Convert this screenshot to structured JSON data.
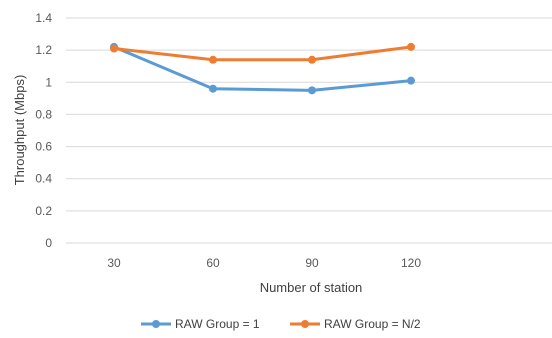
{
  "chart_data": {
    "type": "line",
    "title": "",
    "xlabel": "Number of station",
    "ylabel": "Throughput (Mbps)",
    "categories": [
      "30",
      "60",
      "90",
      "120"
    ],
    "ylim": [
      0,
      1.4
    ],
    "yticks": [
      "0",
      "0.2",
      "0.4",
      "0.6",
      "0.8",
      "1",
      "1.2",
      "1.4"
    ],
    "grid": true,
    "legend_position": "bottom",
    "series": [
      {
        "name": "RAW Group = 1",
        "color": "#5B9BD5",
        "values": [
          1.22,
          0.96,
          0.95,
          1.01
        ]
      },
      {
        "name": "RAW Group = N/2",
        "color": "#ED7D31",
        "values": [
          1.21,
          1.14,
          1.14,
          1.22
        ]
      }
    ]
  }
}
